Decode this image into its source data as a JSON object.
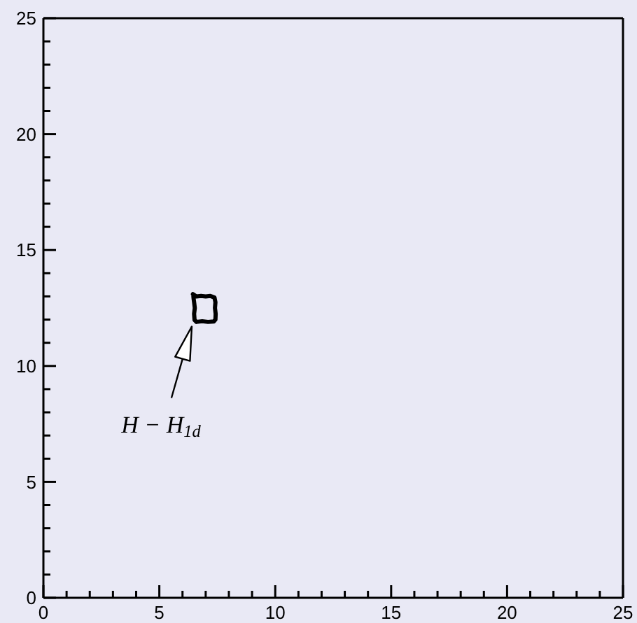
{
  "chart_data": {
    "type": "line",
    "color": "#000000",
    "marker": "none",
    "line_style": "solid",
    "x": [
      6.45,
      6.6,
      6.8,
      7.0,
      7.2,
      7.38,
      7.42,
      7.4,
      7.43,
      7.42,
      7.35,
      7.1,
      6.85,
      6.6,
      6.52,
      6.5,
      6.53,
      6.5,
      6.48,
      6.47
    ],
    "values": [
      13.1,
      13.0,
      13.02,
      13.0,
      13.02,
      12.95,
      12.75,
      12.5,
      12.25,
      12.0,
      11.92,
      11.9,
      11.93,
      11.9,
      11.98,
      12.25,
      12.5,
      12.75,
      12.9,
      13.0
    ],
    "xlim": [
      0,
      25
    ],
    "ylim": [
      0,
      25
    ],
    "xticks": [
      0,
      {
        "value": 1,
        "label": null
      },
      {
        "value": 2,
        "label": null
      },
      {
        "value": 3,
        "label": null
      },
      {
        "value": 4,
        "label": null
      },
      5,
      {
        "value": 6,
        "label": null
      },
      {
        "value": 7,
        "label": null
      },
      {
        "value": 8,
        "label": null
      },
      {
        "value": 9,
        "label": null
      },
      10,
      {
        "value": 11,
        "label": null
      },
      {
        "value": 12,
        "label": null
      },
      {
        "value": 13,
        "label": null
      },
      {
        "value": 14,
        "label": null
      },
      15,
      {
        "value": 16,
        "label": null
      },
      {
        "value": 17,
        "label": null
      },
      {
        "value": 18,
        "label": null
      },
      {
        "value": 19,
        "label": null
      },
      20,
      {
        "value": 21,
        "label": null
      },
      {
        "value": 22,
        "label": null
      },
      {
        "value": 23,
        "label": null
      },
      {
        "value": 24,
        "label": null
      },
      25
    ],
    "yticks": [
      0,
      {
        "value": 1,
        "label": null
      },
      {
        "value": 2,
        "label": null
      },
      {
        "value": 3,
        "label": null
      },
      {
        "value": 4,
        "label": null
      },
      5,
      {
        "value": 6,
        "label": null
      },
      {
        "value": 7,
        "label": null
      },
      {
        "value": 8,
        "label": null
      },
      {
        "value": 9,
        "label": null
      },
      10,
      {
        "value": 11,
        "label": null
      },
      {
        "value": 12,
        "label": null
      },
      {
        "value": 13,
        "label": null
      },
      {
        "value": 14,
        "label": null
      },
      15,
      {
        "value": 16,
        "label": null
      },
      {
        "value": 17,
        "label": null
      },
      {
        "value": 18,
        "label": null
      },
      {
        "value": 19,
        "label": null
      },
      20,
      {
        "value": 21,
        "label": null
      },
      {
        "value": 22,
        "label": null
      },
      {
        "value": 23,
        "label": null
      },
      {
        "value": 24,
        "label": null
      },
      25
    ],
    "annotations": [
      {
        "text": "H − H$_{1d}$",
        "x": 6.4,
        "y": 11.7
      }
    ]
  }
}
